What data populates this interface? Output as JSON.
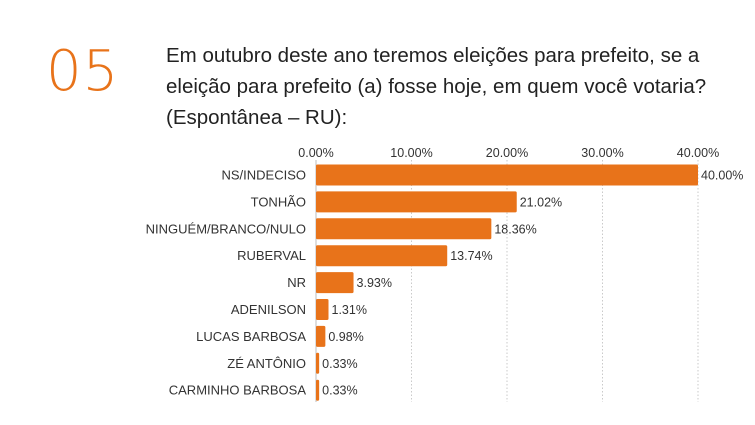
{
  "header": {
    "number": "05",
    "question": "Em outubro deste ano teremos eleições para prefeito, se a eleição para prefeito (a) fosse hoje, em quem você votaria? (Espontânea – RU):"
  },
  "colors": {
    "accent": "#E8731A",
    "bar": "#E8731A",
    "grid": "#BDBDBD",
    "text": "#333333"
  },
  "chart_data": {
    "type": "bar",
    "orientation": "horizontal",
    "categories": [
      "NS/INDECISO",
      "TONHÃO",
      "NINGUÉM/BRANCO/NULO",
      "RUBERVAL",
      "NR",
      "ADENILSON",
      "LUCAS BARBOSA",
      "ZÉ ANTÔNIO",
      "CARMINHO BARBOSA"
    ],
    "values": [
      40.0,
      21.02,
      18.36,
      13.74,
      3.93,
      1.31,
      0.98,
      0.33,
      0.33
    ],
    "value_labels": [
      "40.00%",
      "21.02%",
      "18.36%",
      "13.74%",
      "3.93%",
      "1.31%",
      "0.98%",
      "0.33%",
      "0.33%"
    ],
    "xticks": [
      "0.00%",
      "10.00%",
      "20.00%",
      "30.00%",
      "40.00%"
    ],
    "xlim": [
      0,
      40
    ],
    "xaxis_position": "top",
    "grid": true,
    "legend": "none"
  }
}
